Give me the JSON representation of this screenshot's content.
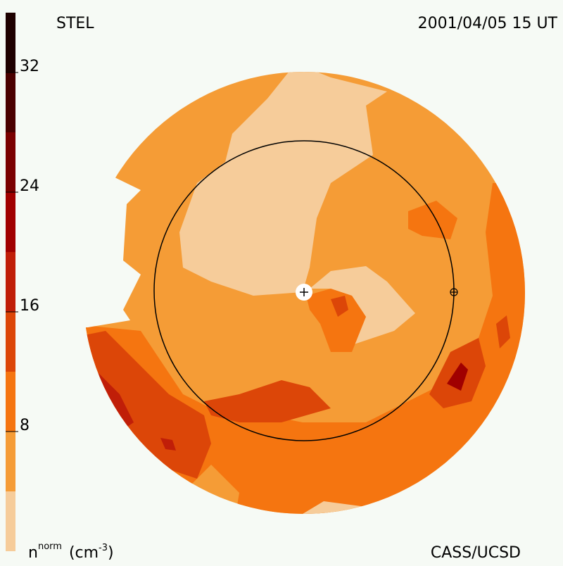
{
  "chart_data": {
    "type": "colormap",
    "title": "STEL",
    "date": "2001/04/05 15 UT",
    "credit": "CASS/UCSD",
    "colorbar_label_base": "n",
    "colorbar_label_sup": "norm",
    "colorbar_label_unit": "(cm",
    "colorbar_label_exp": "-3",
    "colorbar_label_close": ")",
    "clim": [
      0,
      36
    ],
    "cticks": [
      8,
      16,
      24,
      32
    ],
    "levels": [
      0,
      4,
      8,
      12,
      16,
      20,
      24,
      28,
      32,
      36
    ],
    "colors": [
      "#f6cc9a",
      "#f59c36",
      "#f57510",
      "#dc4608",
      "#c01e08",
      "#a00000",
      "#7a0000",
      "#4a0000",
      "#1e0000"
    ]
  }
}
